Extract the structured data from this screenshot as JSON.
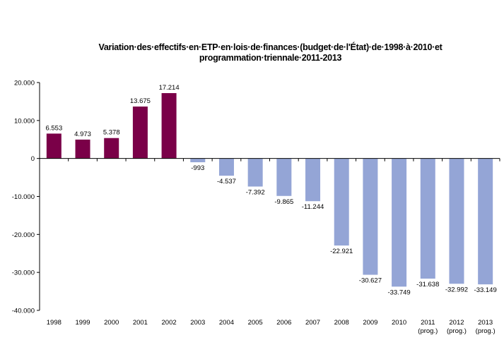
{
  "chart_data": {
    "type": "bar",
    "title_lines": [
      "Variation·des·effectifs·en·ETP·en·lois·de·finances·(budget·de·l'État)·de·1998·à·2010·et",
      "programmation·triennale·2011-2013"
    ],
    "categories": [
      "1998",
      "1999",
      "2000",
      "2001",
      "2002",
      "2003",
      "2004",
      "2005",
      "2006",
      "2007",
      "2008",
      "2009",
      "2010",
      "2011",
      "2012",
      "2013"
    ],
    "category_sublabels": [
      "",
      "",
      "",
      "",
      "",
      "",
      "",
      "",
      "",
      "",
      "",
      "",
      "",
      "(prog.)",
      "(prog.)",
      "(prog.)"
    ],
    "values": [
      6553,
      4973,
      5378,
      13675,
      17214,
      -993,
      -4537,
      -7392,
      -9865,
      -11244,
      -22921,
      -30627,
      -33749,
      -31638,
      -32992,
      -33149
    ],
    "data_labels": [
      "6.553",
      "4.973",
      "5.378",
      "13.675",
      "17.214",
      "-993",
      "-4.537",
      "-7.392",
      "-9.865",
      "-11.244",
      "-22.921",
      "-30.627",
      "-33.749",
      "-31.638",
      "-32.992",
      "-33.149"
    ],
    "yticks": [
      20000,
      10000,
      0,
      -10000,
      -20000,
      -30000,
      -40000
    ],
    "ytick_labels": [
      "20.000",
      "10.000",
      "0",
      "-10.000",
      "-20.000",
      "-30.000",
      "-40.000"
    ],
    "ylim": [
      -40000,
      20000
    ],
    "xlabel": "",
    "ylabel": "",
    "grid": false,
    "colors": {
      "positive": "#7a0048",
      "negative": "#94a5d6"
    }
  }
}
